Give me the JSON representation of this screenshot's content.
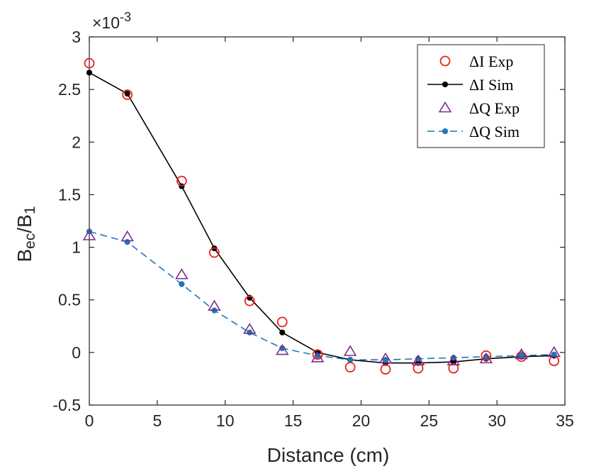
{
  "chart_data": {
    "type": "line",
    "title": "",
    "xlabel": "Distance (cm)",
    "ylabel_main": "B",
    "ylabel_sub1": "ec",
    "ylabel_mid": "/B",
    "ylabel_sub2": "1",
    "exponent_prefix": "×10",
    "exponent_power": "-3",
    "xlim": [
      0,
      35
    ],
    "ylim": [
      -0.5,
      3
    ],
    "xticks": [
      0,
      5,
      10,
      15,
      20,
      25,
      30,
      35
    ],
    "yticks": [
      -0.5,
      0,
      0.5,
      1,
      1.5,
      2,
      2.5,
      3
    ],
    "ytick_labels": [
      "-0.5",
      "0",
      "0.5",
      "1",
      "1.5",
      "2",
      "2.5",
      "3"
    ],
    "grid": false,
    "legend_position": "top-right",
    "series": [
      {
        "name": "ΔI Exp",
        "style": "circle-markers",
        "color": "#e8231f",
        "x": [
          0,
          2.8,
          6.8,
          9.2,
          11.8,
          14.2,
          16.8,
          19.2,
          21.8,
          24.2,
          26.8,
          29.2,
          31.8,
          34.2
        ],
        "y": [
          2.75,
          2.45,
          1.63,
          0.95,
          0.49,
          0.29,
          -0.02,
          -0.14,
          -0.16,
          -0.15,
          -0.15,
          -0.03,
          -0.04,
          -0.08
        ]
      },
      {
        "name": "ΔI Sim",
        "style": "solid-line-dots",
        "color": "#000000",
        "x": [
          0,
          2.8,
          6.8,
          9.2,
          11.8,
          14.2,
          16.8,
          19.2,
          21.8,
          24.2,
          26.8,
          29.2,
          31.8,
          34.2
        ],
        "y": [
          2.66,
          2.46,
          1.58,
          0.99,
          0.52,
          0.19,
          0.0,
          -0.07,
          -0.1,
          -0.1,
          -0.09,
          -0.06,
          -0.04,
          -0.03
        ]
      },
      {
        "name": "ΔQ Exp",
        "style": "triangle-markers",
        "color": "#7b2c8e",
        "x": [
          0,
          2.8,
          6.8,
          9.2,
          11.8,
          14.2,
          16.8,
          19.2,
          21.8,
          24.2,
          26.8,
          29.2,
          31.8,
          34.2
        ],
        "y": [
          1.11,
          1.1,
          0.74,
          0.44,
          0.22,
          0.02,
          -0.05,
          0.01,
          -0.06,
          -0.08,
          -0.08,
          -0.06,
          -0.02,
          0.0
        ]
      },
      {
        "name": "ΔQ Sim",
        "style": "dashed-line-dots",
        "color": "#1f77b4",
        "x": [
          0,
          2.8,
          6.8,
          9.2,
          11.8,
          14.2,
          16.8,
          19.2,
          21.8,
          24.2,
          26.8,
          29.2,
          31.8,
          34.2
        ],
        "y": [
          1.15,
          1.05,
          0.65,
          0.4,
          0.19,
          0.04,
          -0.03,
          -0.07,
          -0.07,
          -0.06,
          -0.05,
          -0.04,
          -0.03,
          -0.02
        ]
      }
    ]
  }
}
